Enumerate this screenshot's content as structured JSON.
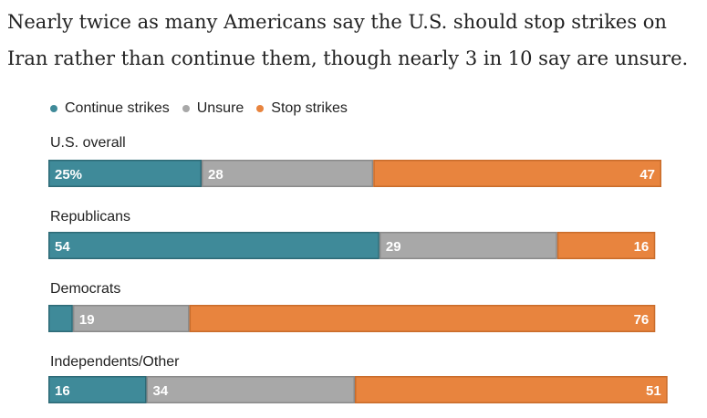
{
  "chart_data": {
    "type": "bar",
    "stacked": true,
    "orientation": "horizontal",
    "title": "Nearly twice as many Americans say the U.S. should stop strikes on Iran rather than continue them, though nearly 3 in 10 say are unsure.",
    "legend_placement": "top",
    "categories": [
      "U.S. overall",
      "Republicans",
      "Democrats",
      "Independents/Other"
    ],
    "series": [
      {
        "name": "Continue strikes",
        "color": "#3f8a99",
        "values": [
          25,
          54,
          4,
          16
        ],
        "labels": [
          "25%",
          "54",
          "",
          "16"
        ]
      },
      {
        "name": "Unsure",
        "color": "#a8a8a8",
        "values": [
          28,
          29,
          19,
          34
        ],
        "labels": [
          "28",
          "29",
          "19",
          "34"
        ]
      },
      {
        "name": "Stop strikes",
        "color": "#e8843e",
        "values": [
          47,
          16,
          76,
          51
        ],
        "labels": [
          "47",
          "16",
          "76",
          "51"
        ]
      }
    ],
    "xlim": [
      0,
      100
    ]
  }
}
